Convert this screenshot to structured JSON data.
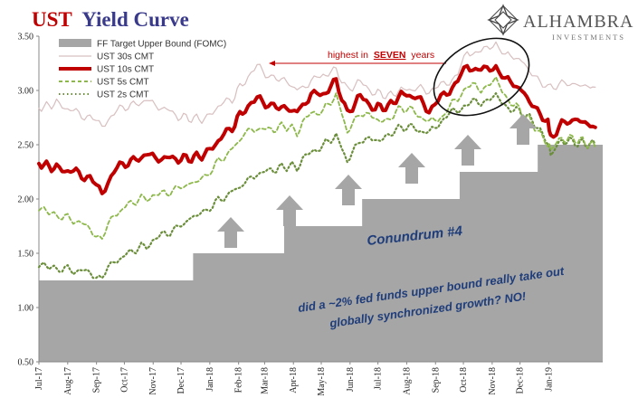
{
  "title": {
    "part1": "UST",
    "part2": "Yield Curve"
  },
  "brand": {
    "name": "ALHAMBRA",
    "sub": "INVESTMENTS"
  },
  "annotations": {
    "highest": "highest in",
    "highest_em": "SEVEN",
    "highest_tail": "years",
    "conundrum": "Conundrum #4",
    "question_line1": "did a ~2% fed funds upper bound really take out",
    "question_line2": "globally synchronized growth? NO!"
  },
  "colors": {
    "ff": "#a6a6a6",
    "s30": "#d8bfc0",
    "s10": "#c00000",
    "s5": "#8db84a",
    "s2": "#6b8e3a",
    "arrow": "#a6a6a6"
  },
  "chart_data": {
    "type": "line",
    "title": "UST Yield Curve",
    "ylim": [
      0.5,
      3.5
    ],
    "yticks": [
      "0.50",
      "1.00",
      "1.50",
      "2.00",
      "2.50",
      "3.00",
      "3.50"
    ],
    "x_start": "2017-07-01",
    "x_end": "2019-02-28",
    "x_tick_labels": [
      "Jul-17",
      "Aug-17",
      "Sep-17",
      "Oct-17",
      "Nov-17",
      "Dec-17",
      "Jan-18",
      "Feb-18",
      "Mar-18",
      "Apr-18",
      "May-18",
      "Jun-18",
      "Jul-18",
      "Aug-18",
      "Sep-18",
      "Oct-18",
      "Nov-18",
      "Dec-18",
      "Jan-19"
    ],
    "legend": [
      {
        "key": "ff",
        "label": "FF Target Upper Bound (FOMC)",
        "style": "area"
      },
      {
        "key": "s30",
        "label": "UST 30s CMT",
        "style": "thin"
      },
      {
        "key": "s10",
        "label": "UST 10s CMT",
        "style": "thick"
      },
      {
        "key": "s5",
        "label": "UST 5s CMT",
        "style": "dash"
      },
      {
        "key": "s2",
        "label": "UST 2s CMT",
        "style": "dot"
      }
    ],
    "ff_steps": [
      {
        "date": "2017-07-01",
        "value": 1.25
      },
      {
        "date": "2017-12-14",
        "value": 1.5
      },
      {
        "date": "2018-03-22",
        "value": 1.75
      },
      {
        "date": "2018-06-14",
        "value": 2.0
      },
      {
        "date": "2018-09-27",
        "value": 2.25
      },
      {
        "date": "2018-12-20",
        "value": 2.5
      }
    ],
    "series": [
      {
        "key": "s30",
        "name": "UST 30s CMT",
        "points": [
          [
            "2017-07-01",
            2.84
          ],
          [
            "2017-07-20",
            2.88
          ],
          [
            "2017-08-10",
            2.8
          ],
          [
            "2017-08-25",
            2.74
          ],
          [
            "2017-09-07",
            2.68
          ],
          [
            "2017-09-20",
            2.8
          ],
          [
            "2017-10-05",
            2.86
          ],
          [
            "2017-10-25",
            2.9
          ],
          [
            "2017-11-10",
            2.85
          ],
          [
            "2017-11-28",
            2.76
          ],
          [
            "2017-12-15",
            2.74
          ],
          [
            "2017-12-29",
            2.74
          ],
          [
            "2018-01-10",
            2.86
          ],
          [
            "2018-01-25",
            2.92
          ],
          [
            "2018-02-08",
            3.1
          ],
          [
            "2018-02-21",
            3.22
          ],
          [
            "2018-03-08",
            3.12
          ],
          [
            "2018-03-22",
            3.1
          ],
          [
            "2018-04-05",
            3.0
          ],
          [
            "2018-04-20",
            3.08
          ],
          [
            "2018-05-03",
            3.13
          ],
          [
            "2018-05-17",
            3.2
          ],
          [
            "2018-05-29",
            3.0
          ],
          [
            "2018-06-12",
            3.08
          ],
          [
            "2018-06-28",
            2.98
          ],
          [
            "2018-07-12",
            2.95
          ],
          [
            "2018-07-26",
            3.0
          ],
          [
            "2018-08-10",
            3.02
          ],
          [
            "2018-08-25",
            3.0
          ],
          [
            "2018-09-10",
            3.05
          ],
          [
            "2018-09-25",
            3.14
          ],
          [
            "2018-10-05",
            3.35
          ],
          [
            "2018-10-20",
            3.35
          ],
          [
            "2018-11-05",
            3.45
          ],
          [
            "2018-11-15",
            3.32
          ],
          [
            "2018-11-30",
            3.3
          ],
          [
            "2018-12-14",
            3.15
          ],
          [
            "2018-12-31",
            3.02
          ],
          [
            "2019-01-15",
            3.07
          ],
          [
            "2019-02-01",
            3.05
          ],
          [
            "2019-02-20",
            3.03
          ]
        ]
      },
      {
        "key": "s10",
        "name": "UST 10s CMT",
        "points": [
          [
            "2017-07-01",
            2.33
          ],
          [
            "2017-07-20",
            2.28
          ],
          [
            "2017-08-10",
            2.25
          ],
          [
            "2017-08-25",
            2.18
          ],
          [
            "2017-09-07",
            2.06
          ],
          [
            "2017-09-20",
            2.27
          ],
          [
            "2017-10-05",
            2.34
          ],
          [
            "2017-10-25",
            2.4
          ],
          [
            "2017-11-10",
            2.38
          ],
          [
            "2017-11-28",
            2.37
          ],
          [
            "2017-12-15",
            2.38
          ],
          [
            "2017-12-29",
            2.42
          ],
          [
            "2018-01-10",
            2.54
          ],
          [
            "2018-01-25",
            2.66
          ],
          [
            "2018-02-08",
            2.84
          ],
          [
            "2018-02-21",
            2.92
          ],
          [
            "2018-03-08",
            2.86
          ],
          [
            "2018-03-22",
            2.84
          ],
          [
            "2018-04-05",
            2.8
          ],
          [
            "2018-04-20",
            2.96
          ],
          [
            "2018-05-03",
            2.95
          ],
          [
            "2018-05-17",
            3.1
          ],
          [
            "2018-05-29",
            2.78
          ],
          [
            "2018-06-12",
            2.95
          ],
          [
            "2018-06-28",
            2.84
          ],
          [
            "2018-07-12",
            2.85
          ],
          [
            "2018-07-26",
            2.96
          ],
          [
            "2018-08-10",
            2.95
          ],
          [
            "2018-08-25",
            2.82
          ],
          [
            "2018-09-10",
            2.95
          ],
          [
            "2018-09-25",
            3.08
          ],
          [
            "2018-10-05",
            3.22
          ],
          [
            "2018-10-20",
            3.18
          ],
          [
            "2018-11-05",
            3.23
          ],
          [
            "2018-11-15",
            3.1
          ],
          [
            "2018-11-30",
            3.03
          ],
          [
            "2018-12-14",
            2.87
          ],
          [
            "2018-12-31",
            2.7
          ],
          [
            "2019-01-03",
            2.56
          ],
          [
            "2019-01-15",
            2.7
          ],
          [
            "2019-02-01",
            2.73
          ],
          [
            "2019-02-20",
            2.66
          ]
        ]
      },
      {
        "key": "s5",
        "name": "UST 5s CMT",
        "points": [
          [
            "2017-07-01",
            1.92
          ],
          [
            "2017-07-20",
            1.85
          ],
          [
            "2017-08-10",
            1.8
          ],
          [
            "2017-08-25",
            1.73
          ],
          [
            "2017-09-07",
            1.63
          ],
          [
            "2017-09-20",
            1.85
          ],
          [
            "2017-10-05",
            1.95
          ],
          [
            "2017-10-25",
            2.02
          ],
          [
            "2017-11-10",
            2.04
          ],
          [
            "2017-11-28",
            2.1
          ],
          [
            "2017-12-15",
            2.15
          ],
          [
            "2017-12-29",
            2.22
          ],
          [
            "2018-01-10",
            2.34
          ],
          [
            "2018-01-25",
            2.46
          ],
          [
            "2018-02-08",
            2.6
          ],
          [
            "2018-02-21",
            2.66
          ],
          [
            "2018-03-08",
            2.63
          ],
          [
            "2018-03-22",
            2.68
          ],
          [
            "2018-04-05",
            2.62
          ],
          [
            "2018-04-20",
            2.8
          ],
          [
            "2018-05-03",
            2.82
          ],
          [
            "2018-05-17",
            2.95
          ],
          [
            "2018-05-29",
            2.62
          ],
          [
            "2018-06-12",
            2.8
          ],
          [
            "2018-06-28",
            2.73
          ],
          [
            "2018-07-12",
            2.72
          ],
          [
            "2018-07-26",
            2.85
          ],
          [
            "2018-08-10",
            2.8
          ],
          [
            "2018-08-25",
            2.7
          ],
          [
            "2018-09-10",
            2.78
          ],
          [
            "2018-09-25",
            2.94
          ],
          [
            "2018-10-05",
            3.05
          ],
          [
            "2018-10-20",
            3.02
          ],
          [
            "2018-11-05",
            3.08
          ],
          [
            "2018-11-15",
            2.95
          ],
          [
            "2018-11-30",
            2.82
          ],
          [
            "2018-12-14",
            2.7
          ],
          [
            "2018-12-31",
            2.5
          ],
          [
            "2019-01-03",
            2.45
          ],
          [
            "2019-01-15",
            2.56
          ],
          [
            "2019-02-01",
            2.55
          ],
          [
            "2019-02-20",
            2.48
          ]
        ]
      },
      {
        "key": "s2",
        "name": "UST 2s CMT",
        "points": [
          [
            "2017-07-01",
            1.4
          ],
          [
            "2017-07-20",
            1.36
          ],
          [
            "2017-08-10",
            1.34
          ],
          [
            "2017-08-25",
            1.33
          ],
          [
            "2017-09-07",
            1.27
          ],
          [
            "2017-09-20",
            1.42
          ],
          [
            "2017-10-05",
            1.5
          ],
          [
            "2017-10-25",
            1.58
          ],
          [
            "2017-11-10",
            1.66
          ],
          [
            "2017-11-28",
            1.74
          ],
          [
            "2017-12-15",
            1.84
          ],
          [
            "2017-12-29",
            1.9
          ],
          [
            "2018-01-10",
            1.98
          ],
          [
            "2018-01-25",
            2.07
          ],
          [
            "2018-02-08",
            2.14
          ],
          [
            "2018-02-21",
            2.24
          ],
          [
            "2018-03-08",
            2.26
          ],
          [
            "2018-03-22",
            2.3
          ],
          [
            "2018-04-05",
            2.3
          ],
          [
            "2018-04-20",
            2.44
          ],
          [
            "2018-05-03",
            2.5
          ],
          [
            "2018-05-17",
            2.58
          ],
          [
            "2018-05-29",
            2.35
          ],
          [
            "2018-06-12",
            2.55
          ],
          [
            "2018-06-28",
            2.53
          ],
          [
            "2018-07-12",
            2.58
          ],
          [
            "2018-07-26",
            2.67
          ],
          [
            "2018-08-10",
            2.65
          ],
          [
            "2018-08-25",
            2.6
          ],
          [
            "2018-09-10",
            2.75
          ],
          [
            "2018-09-25",
            2.83
          ],
          [
            "2018-10-05",
            2.88
          ],
          [
            "2018-10-20",
            2.9
          ],
          [
            "2018-11-05",
            2.93
          ],
          [
            "2018-11-15",
            2.86
          ],
          [
            "2018-11-30",
            2.8
          ],
          [
            "2018-12-14",
            2.73
          ],
          [
            "2018-12-31",
            2.52
          ],
          [
            "2019-01-03",
            2.4
          ],
          [
            "2019-01-15",
            2.54
          ],
          [
            "2019-02-01",
            2.52
          ],
          [
            "2019-02-20",
            2.5
          ]
        ]
      }
    ]
  }
}
